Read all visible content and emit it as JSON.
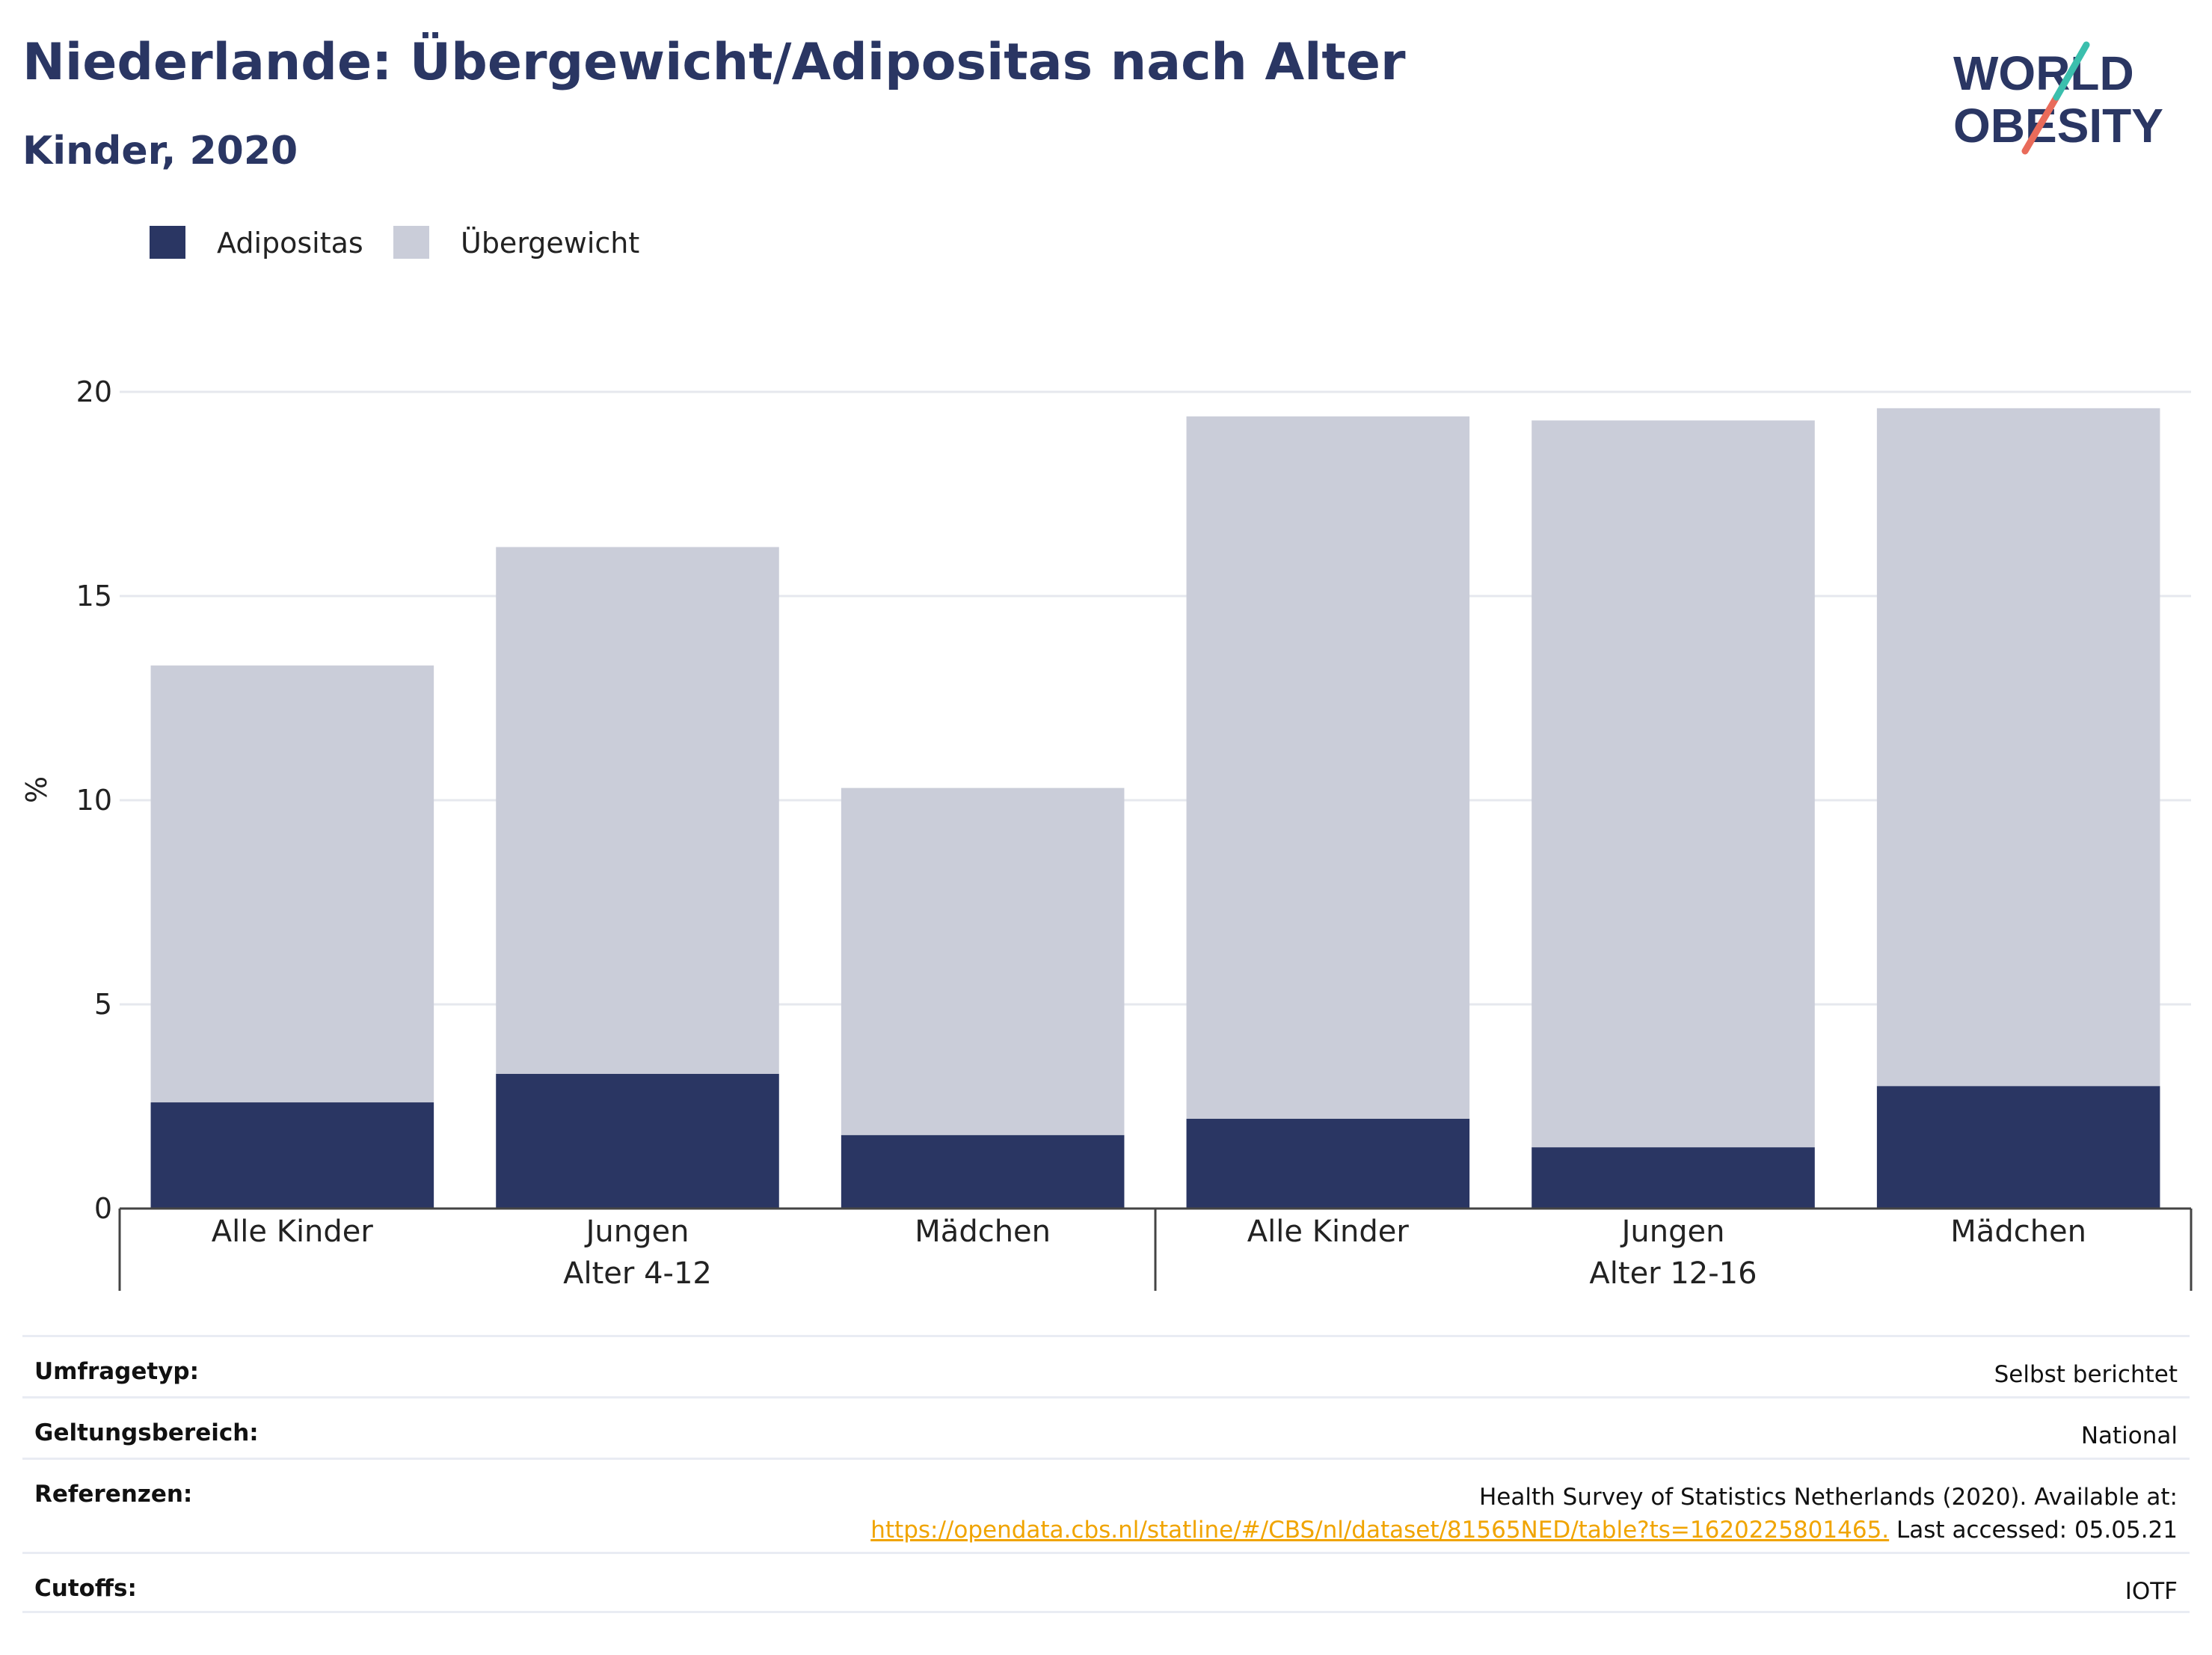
{
  "header": {
    "title": "Niederlande: Übergewicht/Adipositas nach Alter",
    "subtitle": "Kinder, 2020"
  },
  "logo": {
    "line1": "WORLD",
    "line2": "OBESITY"
  },
  "chart_data": {
    "type": "bar",
    "stacked": true,
    "title": "Niederlande: Übergewicht/Adipositas nach Alter",
    "subtitle": "Kinder, 2020",
    "ylabel": "%",
    "ylim": [
      0,
      20
    ],
    "yticks": [
      0,
      5,
      10,
      15,
      20
    ],
    "grid": true,
    "legend_position": "top-left",
    "groups": [
      {
        "label": "Alter 4-12",
        "categories": [
          "Alle Kinder",
          "Jungen",
          "Mädchen"
        ]
      },
      {
        "label": "Alter 12-16",
        "categories": [
          "Alle Kinder",
          "Jungen",
          "Mädchen"
        ]
      }
    ],
    "categories": [
      "Alle Kinder",
      "Jungen",
      "Mädchen",
      "Alle Kinder",
      "Jungen",
      "Mädchen"
    ],
    "series": [
      {
        "name": "Adipositas",
        "color": "#2a3663",
        "values": [
          2.6,
          3.3,
          1.8,
          2.2,
          1.5,
          3.0
        ]
      },
      {
        "name": "Übergewicht",
        "color": "#cacdd9",
        "values": [
          10.7,
          12.9,
          8.5,
          17.2,
          17.8,
          16.6
        ]
      }
    ]
  },
  "info": {
    "survey_label": "Umfragetyp:",
    "survey_value": "Selbst berichtet",
    "scope_label": "Geltungsbereich:",
    "scope_value": "National",
    "refs_label": "Referenzen:",
    "refs_line1": "Health Survey of Statistics Netherlands (2020). Available at:",
    "refs_link": "https://opendata.cbs.nl/statline/#/CBS/nl/dataset/81565NED/table?ts=1620225801465.",
    "refs_suffix": " Last accessed: 05.05.21",
    "cutoffs_label": "Cutoffs:",
    "cutoffs_value": "IOTF"
  },
  "colors": {
    "accent": "#2a3663",
    "light": "#cacdd9",
    "link": "#f0a400",
    "logo_teal": "#3bbfad",
    "logo_coral": "#e96b5a"
  }
}
